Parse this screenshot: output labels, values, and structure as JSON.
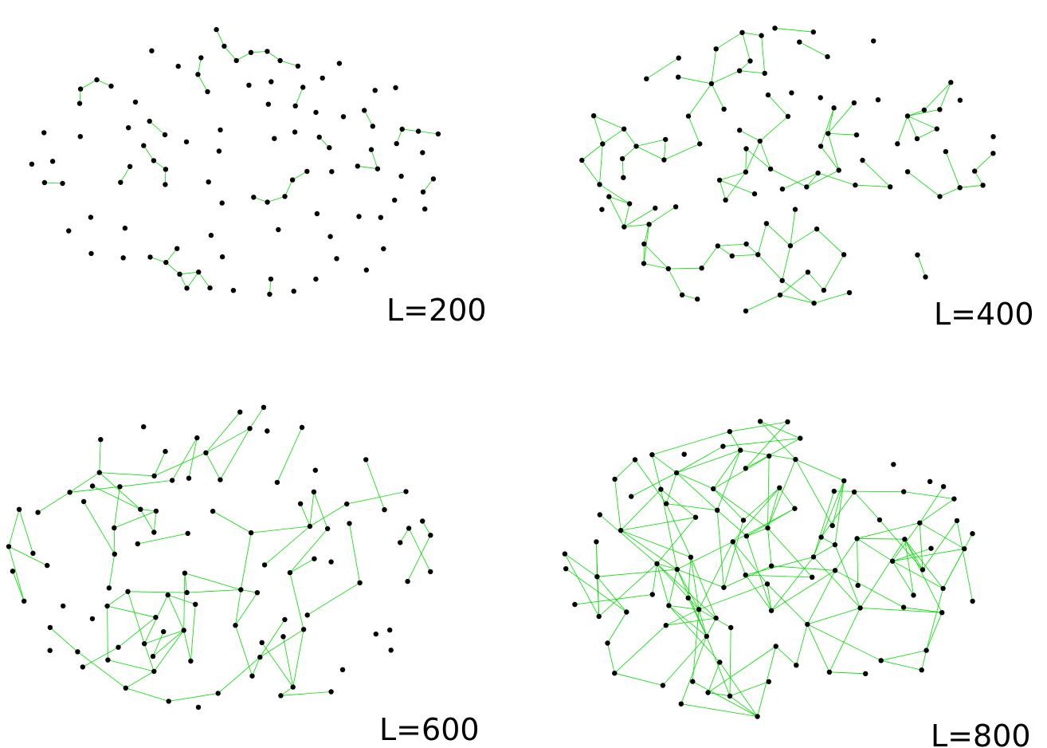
{
  "panels": [
    {
      "label": "L=200",
      "node_count": 100,
      "link_range": 200
    },
    {
      "label": "L=400",
      "node_count": 100,
      "link_range": 400
    },
    {
      "label": "L=600",
      "node_count": 100,
      "link_range": 600
    },
    {
      "label": "L=800",
      "node_count": 100,
      "link_range": 800
    }
  ],
  "colors": {
    "edge": "#00dd00",
    "node": "#000000",
    "background": "#ffffff"
  }
}
